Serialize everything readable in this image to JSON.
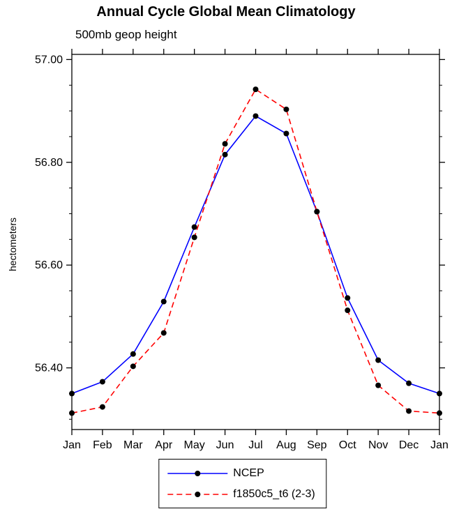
{
  "chart_data": {
    "type": "line",
    "title": "Annual Cycle Global Mean Climatology",
    "subtitle": "500mb geop height",
    "xlabel": "",
    "ylabel": "hectometers",
    "categories": [
      "Jan",
      "Feb",
      "Mar",
      "Apr",
      "May",
      "Jun",
      "Jul",
      "Aug",
      "Sep",
      "Oct",
      "Nov",
      "Dec",
      "Jan"
    ],
    "series": [
      {
        "name": "NCEP",
        "color": "#0000ff",
        "style": "solid",
        "marker": "filled-circle",
        "values": [
          56.35,
          56.373,
          56.427,
          56.529,
          56.674,
          56.815,
          56.89,
          56.856,
          56.704,
          56.536,
          56.415,
          56.37,
          56.35
        ]
      },
      {
        "name": "f1850c5_t6 (2-3)",
        "color": "#ff0000",
        "style": "dashed",
        "marker": "filled-circle",
        "values": [
          56.312,
          56.324,
          56.403,
          56.468,
          56.654,
          56.836,
          56.942,
          56.903,
          56.704,
          56.512,
          56.366,
          56.316,
          56.312
        ]
      }
    ],
    "ylim": [
      56.28,
      57.01
    ],
    "yticks": [
      56.4,
      56.6,
      56.8,
      57.0
    ],
    "ytick_labels": [
      "56.40",
      "56.60",
      "56.80",
      "57.00"
    ],
    "ytick_minor_step": 0.05,
    "marker_color": "#000000",
    "axis_color": "#000000",
    "grid": false,
    "legend_position": "bottom-center"
  }
}
